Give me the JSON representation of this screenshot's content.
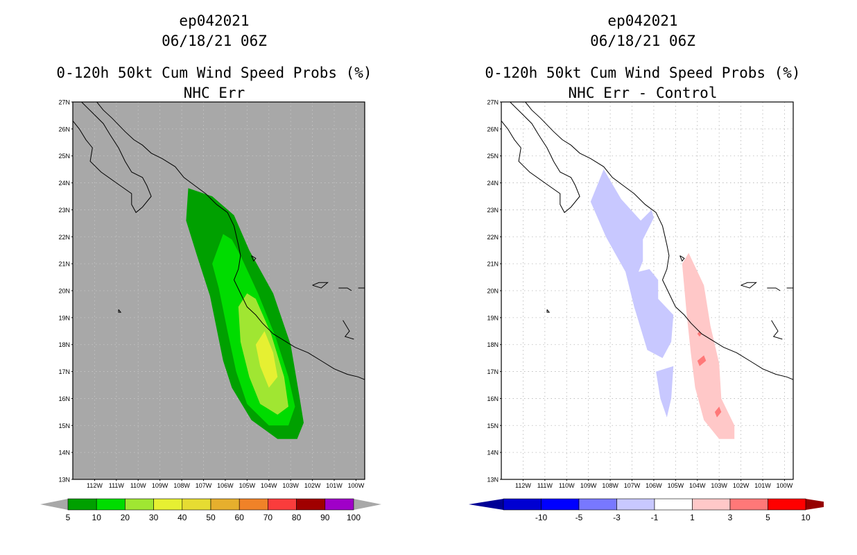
{
  "left_panel": {
    "storm_id": "ep042021",
    "datetime": "06/18/21 06Z",
    "title": "0-120h 50kt Cum Wind Speed Probs (%)",
    "subtitle": "NHC Err",
    "background": "#a8a8a8"
  },
  "right_panel": {
    "storm_id": "ep042021",
    "datetime": "06/18/21 06Z",
    "title": "0-120h 50kt Cum Wind Speed Probs (%)",
    "subtitle": "NHC Err - Control",
    "background": "#ffffff"
  },
  "map_axes": {
    "lat_labels": [
      "27N",
      "26N",
      "25N",
      "24N",
      "23N",
      "22N",
      "21N",
      "20N",
      "19N",
      "18N",
      "17N",
      "16N",
      "15N",
      "14N",
      "13N"
    ],
    "lon_labels": [
      "112W",
      "111W",
      "110W",
      "109W",
      "108W",
      "107W",
      "106W",
      "105W",
      "104W",
      "103W",
      "102W",
      "101W",
      "100W"
    ],
    "lat_range": [
      13,
      27
    ],
    "lon_range": [
      -113,
      -99.6
    ]
  },
  "left_colorbar": {
    "labels": [
      "5",
      "10",
      "20",
      "30",
      "40",
      "50",
      "60",
      "70",
      "80",
      "90",
      "100"
    ],
    "colors": [
      "#00a000",
      "#00dc00",
      "#a0e632",
      "#e6f032",
      "#e6dc32",
      "#e6af2d",
      "#f08228",
      "#fa3c3c",
      "#a00000",
      "#a000c8"
    ],
    "end_color_low": "#a8a8a8",
    "end_color_high": "#a8a8a8"
  },
  "right_colorbar": {
    "labels": [
      "-10",
      "-5",
      "-3",
      "-1",
      "1",
      "3",
      "5",
      "10"
    ],
    "colors": [
      "#0000d2",
      "#0000ff",
      "#7878ff",
      "#c8c8ff",
      "#ffffff",
      "#ffc8c8",
      "#ff7878",
      "#ff0000"
    ],
    "end_color_low": "#000096",
    "end_color_high": "#960000"
  },
  "chart_data": [
    {
      "type": "map-contour",
      "title": "0-120h 50kt Cum Wind Speed Probs (%)",
      "subtitle": "NHC Err",
      "levels": [
        {
          "level": "5-10",
          "color": "#00a000",
          "polygon_lonlat": [
            [
              -107.7,
              23.8
            ],
            [
              -106.6,
              23.5
            ],
            [
              -105.6,
              22.8
            ],
            [
              -104.9,
              21.5
            ],
            [
              -103.8,
              19.9
            ],
            [
              -103.0,
              18.0
            ],
            [
              -102.6,
              16.1
            ],
            [
              -102.4,
              15.1
            ],
            [
              -102.7,
              14.5
            ],
            [
              -103.6,
              14.5
            ],
            [
              -104.8,
              15.2
            ],
            [
              -105.7,
              16.4
            ],
            [
              -106.1,
              17.4
            ],
            [
              -106.7,
              19.8
            ],
            [
              -107.3,
              21.3
            ],
            [
              -107.8,
              22.6
            ],
            [
              -107.7,
              23.8
            ]
          ]
        },
        {
          "level": "10-20",
          "color": "#00dc00",
          "polygon_lonlat": [
            [
              -106.1,
              22.1
            ],
            [
              -105.7,
              21.9
            ],
            [
              -105.3,
              21.3
            ],
            [
              -104.5,
              19.9
            ],
            [
              -103.7,
              18.3
            ],
            [
              -103.1,
              16.8
            ],
            [
              -102.8,
              15.7
            ],
            [
              -103.1,
              15.0
            ],
            [
              -104.0,
              15.0
            ],
            [
              -105.0,
              15.8
            ],
            [
              -105.5,
              17.0
            ],
            [
              -105.9,
              18.5
            ],
            [
              -106.3,
              20.1
            ],
            [
              -106.6,
              21.0
            ],
            [
              -106.1,
              22.1
            ]
          ]
        },
        {
          "level": "20-30",
          "color": "#a0e632",
          "polygon_lonlat": [
            [
              -105.0,
              19.9
            ],
            [
              -104.6,
              19.7
            ],
            [
              -103.9,
              18.4
            ],
            [
              -103.3,
              16.8
            ],
            [
              -103.1,
              15.7
            ],
            [
              -103.6,
              15.4
            ],
            [
              -104.4,
              15.8
            ],
            [
              -104.9,
              16.8
            ],
            [
              -105.3,
              18.1
            ],
            [
              -105.4,
              19.4
            ],
            [
              -105.0,
              19.9
            ]
          ]
        },
        {
          "level": "30-40",
          "color": "#e6f032",
          "polygon_lonlat": [
            [
              -104.2,
              18.5
            ],
            [
              -103.8,
              17.7
            ],
            [
              -103.6,
              16.8
            ],
            [
              -104.0,
              16.4
            ],
            [
              -104.4,
              17.2
            ],
            [
              -104.6,
              18.0
            ],
            [
              -104.2,
              18.5
            ]
          ]
        }
      ]
    },
    {
      "type": "map-contour",
      "title": "0-120h 50kt Cum Wind Speed Probs (%)",
      "subtitle": "NHC Err - Control",
      "levels": [
        {
          "level": "-3 to -1",
          "color": "#c8c8ff",
          "polygon_lonlat": [
            [
              -108.9,
              23.3
            ],
            [
              -108.3,
              24.5
            ],
            [
              -107.5,
              23.4
            ],
            [
              -106.6,
              22.6
            ],
            [
              -106.1,
              23.0
            ],
            [
              -106.0,
              22.7
            ],
            [
              -106.5,
              21.9
            ],
            [
              -106.5,
              21.1
            ],
            [
              -106.7,
              20.7
            ],
            [
              -106.2,
              20.8
            ],
            [
              -105.8,
              20.4
            ],
            [
              -105.8,
              19.7
            ],
            [
              -105.1,
              19.1
            ],
            [
              -105.2,
              18.1
            ],
            [
              -105.6,
              17.5
            ],
            [
              -106.3,
              17.8
            ],
            [
              -106.9,
              19.4
            ],
            [
              -107.3,
              20.7
            ],
            [
              -108.2,
              22.0
            ],
            [
              -108.9,
              23.3
            ]
          ]
        },
        {
          "level": "-3 to -1",
          "color": "#c8c8ff",
          "polygon_lonlat": [
            [
              -105.1,
              17.2
            ],
            [
              -105.9,
              17.0
            ],
            [
              -105.7,
              16.0
            ],
            [
              -105.4,
              15.3
            ],
            [
              -105.2,
              16.0
            ],
            [
              -105.1,
              17.2
            ]
          ]
        },
        {
          "level": "1 to 3",
          "color": "#ffc8c8",
          "polygon_lonlat": [
            [
              -104.4,
              21.4
            ],
            [
              -104.7,
              21.0
            ],
            [
              -104.5,
              19.2
            ],
            [
              -104.3,
              17.7
            ],
            [
              -104.1,
              16.4
            ],
            [
              -103.7,
              15.2
            ],
            [
              -103.0,
              14.5
            ],
            [
              -102.3,
              14.5
            ],
            [
              -102.3,
              15.0
            ],
            [
              -102.9,
              16.0
            ],
            [
              -103.0,
              17.3
            ],
            [
              -103.4,
              18.7
            ],
            [
              -103.7,
              20.2
            ],
            [
              -104.4,
              21.4
            ]
          ]
        },
        {
          "level": "3 to 5",
          "color": "#ff7878",
          "polygon_lonlat": [
            [
              -103.7,
              17.6
            ],
            [
              -103.6,
              17.4
            ],
            [
              -103.9,
              17.2
            ],
            [
              -104.0,
              17.4
            ],
            [
              -103.7,
              17.6
            ]
          ]
        },
        {
          "level": "3 to 5",
          "color": "#ff7878",
          "polygon_lonlat": [
            [
              -103.0,
              15.7
            ],
            [
              -102.9,
              15.5
            ],
            [
              -103.1,
              15.3
            ],
            [
              -103.2,
              15.5
            ],
            [
              -103.0,
              15.7
            ]
          ]
        },
        {
          "level": "3 to 5",
          "color": "#ff7878",
          "polygon_lonlat": [
            [
              -103.9,
              18.5
            ],
            [
              -103.8,
              18.4
            ],
            [
              -103.9,
              18.3
            ],
            [
              -104.0,
              18.4
            ],
            [
              -103.9,
              18.5
            ]
          ]
        }
      ]
    }
  ]
}
